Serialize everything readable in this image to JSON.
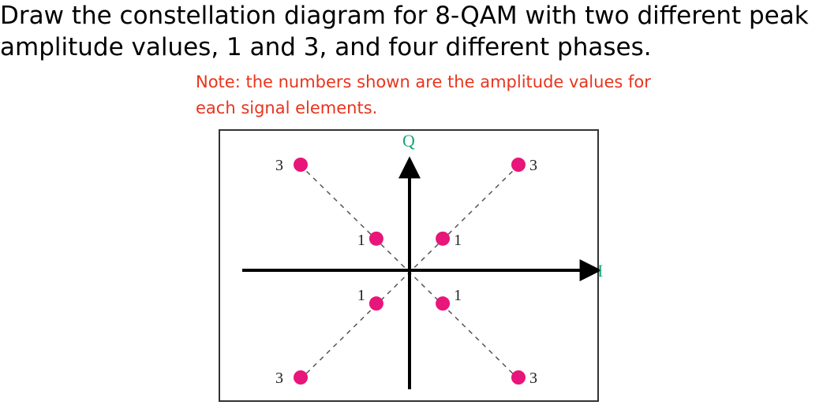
{
  "question": {
    "line1": "Draw the constellation diagram for 8-QAM with two different peak",
    "line2": "amplitude values, 1 and 3, and four different phases."
  },
  "note": {
    "line1": "Note: the numbers shown are the amplitude values for",
    "line2": "each signal elements."
  },
  "diagram": {
    "q_label": "Q",
    "i_label": "I",
    "axis_label_color": "#1aa37a",
    "point_color": "#e8157a",
    "points": [
      {
        "name": "point-q2-outer",
        "label": "3",
        "quadrant": 2,
        "amplitude": 3
      },
      {
        "name": "point-q1-outer",
        "label": "3",
        "quadrant": 1,
        "amplitude": 3
      },
      {
        "name": "point-q2-inner",
        "label": "1",
        "quadrant": 2,
        "amplitude": 1
      },
      {
        "name": "point-q1-inner",
        "label": "1",
        "quadrant": 1,
        "amplitude": 1
      },
      {
        "name": "point-q3-inner",
        "label": "1",
        "quadrant": 3,
        "amplitude": 1
      },
      {
        "name": "point-q4-inner",
        "label": "1",
        "quadrant": 4,
        "amplitude": 1
      },
      {
        "name": "point-q3-outer",
        "label": "3",
        "quadrant": 3,
        "amplitude": 3
      },
      {
        "name": "point-q4-outer",
        "label": "3",
        "quadrant": 4,
        "amplitude": 3
      }
    ]
  }
}
